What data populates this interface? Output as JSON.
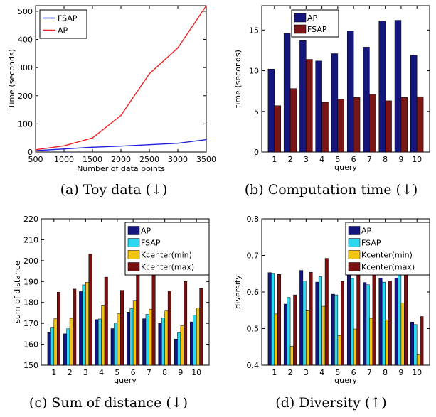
{
  "figure_captions": {
    "a": "(a) Toy data (↓)",
    "b": "(b) Computation time (↓)",
    "c": "(c) Sum of distance (↓)",
    "d": "(d) Diversity (↑)"
  },
  "chart_data": [
    {
      "id": "a",
      "type": "line",
      "xlabel": "Number of data points",
      "ylabel": "Time (seconds)",
      "xlim": [
        500,
        3500
      ],
      "ylim": [
        0,
        520
      ],
      "xticks": [
        500,
        1000,
        1500,
        2000,
        2500,
        3000,
        3500
      ],
      "yticks": [
        0,
        100,
        200,
        300,
        400,
        500
      ],
      "legend_position": "top-left",
      "x": [
        500,
        1000,
        1500,
        2000,
        2500,
        3000,
        3500
      ],
      "series": [
        {
          "name": "FSAP",
          "color": "#1f1fdc",
          "values": [
            5,
            11,
            17,
            21,
            26,
            31,
            44
          ]
        },
        {
          "name": "AP",
          "color": "#ee2222",
          "values": [
            8,
            22,
            50,
            130,
            278,
            370,
            520
          ]
        }
      ]
    },
    {
      "id": "b",
      "type": "bar",
      "xlabel": "query",
      "ylabel": "time (seconds)",
      "ylim": [
        0,
        18
      ],
      "yticks": [
        0,
        5,
        10,
        15
      ],
      "legend_position": "top-center",
      "categories": [
        "1",
        "2",
        "3",
        "4",
        "5",
        "6",
        "7",
        "8",
        "9",
        "10"
      ],
      "series": [
        {
          "name": "AP",
          "color": "#15157e",
          "values": [
            10.2,
            14.6,
            13.7,
            11.2,
            12.1,
            14.9,
            12.9,
            16.1,
            16.2,
            11.9
          ]
        },
        {
          "name": "FSAP",
          "color": "#7a1616",
          "values": [
            5.7,
            7.8,
            11.4,
            6.1,
            6.5,
            6.7,
            7.1,
            6.3,
            6.7,
            6.8
          ]
        }
      ]
    },
    {
      "id": "c",
      "type": "bar",
      "xlabel": "query",
      "ylabel": "sum of distance",
      "ylim": [
        150,
        220
      ],
      "yticks": [
        150,
        160,
        170,
        180,
        190,
        200,
        210,
        220
      ],
      "legend_position": "top-right",
      "categories": [
        "1",
        "2",
        "3",
        "4",
        "5",
        "6",
        "7",
        "8",
        "9",
        "10"
      ],
      "series": [
        {
          "name": "AP",
          "color": "#15157e",
          "values": [
            165.6,
            165.0,
            185.2,
            171.8,
            167.5,
            175.4,
            172.2,
            170.0,
            162.5,
            170.7
          ]
        },
        {
          "name": "FSAP",
          "color": "#2bd8ef",
          "values": [
            167.8,
            167.4,
            188.4,
            172.1,
            170.1,
            177.0,
            174.3,
            172.6,
            165.6,
            173.9
          ]
        },
        {
          "name": "Kcenter(min)",
          "color": "#f2c512",
          "values": [
            172.2,
            172.4,
            189.6,
            178.4,
            174.6,
            180.7,
            176.8,
            175.9,
            168.8,
            177.4
          ]
        },
        {
          "name": "Kcenter(max)",
          "color": "#7a1010",
          "values": [
            184.9,
            186.4,
            203.1,
            192.1,
            185.8,
            197.2,
            194.6,
            185.6,
            190.0,
            186.6
          ]
        }
      ]
    },
    {
      "id": "d",
      "type": "bar",
      "xlabel": "query",
      "ylabel": "diversity",
      "ylim": [
        0.4,
        0.8
      ],
      "yticks": [
        0.4,
        0.5,
        0.6,
        0.7,
        0.8
      ],
      "legend_position": "top-right",
      "categories": [
        "1",
        "2",
        "3",
        "4",
        "5",
        "6",
        "7",
        "8",
        "9",
        "10"
      ],
      "series": [
        {
          "name": "AP",
          "color": "#15157e",
          "values": [
            0.653,
            0.567,
            0.659,
            0.627,
            0.594,
            0.646,
            0.626,
            0.638,
            0.638,
            0.518
          ]
        },
        {
          "name": "FSAP",
          "color": "#2bd8ef",
          "values": [
            0.651,
            0.585,
            0.63,
            0.642,
            0.592,
            0.637,
            0.62,
            0.627,
            0.648,
            0.511
          ]
        },
        {
          "name": "Kcenter(min)",
          "color": "#f2c512",
          "values": [
            0.54,
            0.452,
            0.549,
            0.561,
            0.481,
            0.499,
            0.528,
            0.524,
            0.57,
            0.428
          ]
        },
        {
          "name": "Kcenter(max)",
          "color": "#7a1010",
          "values": [
            0.648,
            0.592,
            0.654,
            0.692,
            0.629,
            0.654,
            0.646,
            0.63,
            0.647,
            0.533
          ]
        }
      ]
    }
  ]
}
